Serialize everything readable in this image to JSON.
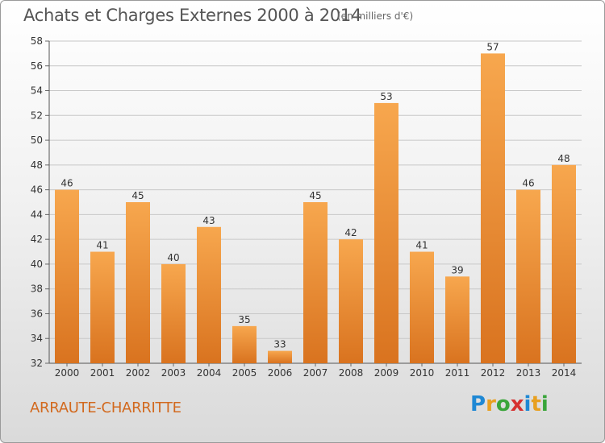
{
  "header": {
    "title": "Achats et Charges Externes 2000 à 2014",
    "subtitle": "(en milliers d'€)"
  },
  "footer": {
    "commune": "ARRAUTE-CHARRITTE",
    "logo_text": "Proxiti",
    "logo_colors": [
      "#1e88d4",
      "#e8a020",
      "#3aa53a",
      "#d63030",
      "#1e88d4",
      "#e8a020",
      "#3aa53a"
    ]
  },
  "colors": {
    "bar_light": "#f7a74e",
    "bar_dark": "#d9731f",
    "grid": "#c8c8c8",
    "text": "#333333"
  },
  "chart_data": {
    "type": "bar",
    "title": "Achats et Charges Externes 2000 à 2014",
    "subtitle": "(en milliers d'€)",
    "xlabel": "",
    "ylabel": "",
    "categories": [
      "2000",
      "2001",
      "2002",
      "2003",
      "2004",
      "2005",
      "2006",
      "2007",
      "2008",
      "2009",
      "2010",
      "2011",
      "2012",
      "2013",
      "2014"
    ],
    "values": [
      46,
      41,
      45,
      40,
      43,
      35,
      33,
      45,
      42,
      53,
      41,
      39,
      57,
      46,
      48
    ],
    "ylim": [
      32,
      58
    ],
    "yticks": [
      32,
      34,
      36,
      38,
      40,
      42,
      44,
      46,
      48,
      50,
      52,
      54,
      56,
      58
    ],
    "grid": true,
    "data_labels": true,
    "legend": "none"
  }
}
